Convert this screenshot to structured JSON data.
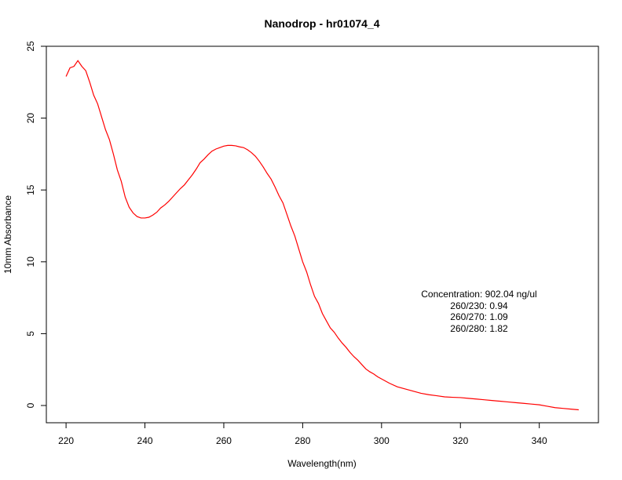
{
  "chart_data": {
    "type": "line",
    "title": "Nanodrop - hr01074_4",
    "xlabel": "Wavelength(nm)",
    "ylabel": "10mm Absorbance",
    "xlim": [
      215,
      355
    ],
    "ylim": [
      -1.2,
      25
    ],
    "xticks": [
      220,
      240,
      260,
      280,
      300,
      320,
      340
    ],
    "yticks": [
      0,
      5,
      10,
      15,
      20,
      25
    ],
    "grid": false,
    "line_color": "#ff0000",
    "series": [
      {
        "x": [
          220,
          221,
          222,
          223,
          224,
          225,
          226,
          227,
          228,
          229,
          230,
          231,
          232,
          233,
          234,
          235,
          236,
          237,
          238,
          239,
          240,
          241,
          242,
          243,
          244,
          245,
          246,
          247,
          248,
          249,
          250,
          251,
          252,
          253,
          254,
          255,
          256,
          257,
          258,
          259,
          260,
          261,
          262,
          263,
          264,
          265,
          266,
          267,
          268,
          269,
          270,
          271,
          272,
          273,
          274,
          275,
          276,
          277,
          278,
          279,
          280,
          281,
          282,
          283,
          284,
          285,
          286,
          287,
          288,
          289,
          290,
          291,
          292,
          293,
          294,
          295,
          296,
          297,
          298,
          299,
          300,
          302,
          304,
          306,
          308,
          310,
          312,
          314,
          316,
          318,
          320,
          322,
          324,
          326,
          328,
          330,
          332,
          334,
          336,
          338,
          340,
          342,
          344,
          346,
          348,
          350
        ],
        "y": [
          22.9,
          23.5,
          23.6,
          24.0,
          23.6,
          23.3,
          22.5,
          21.6,
          21.0,
          20.1,
          19.2,
          18.5,
          17.5,
          16.4,
          15.6,
          14.5,
          13.8,
          13.4,
          13.15,
          13.05,
          13.05,
          13.1,
          13.25,
          13.45,
          13.75,
          13.95,
          14.2,
          14.5,
          14.8,
          15.1,
          15.35,
          15.7,
          16.05,
          16.45,
          16.9,
          17.15,
          17.45,
          17.7,
          17.85,
          17.95,
          18.05,
          18.1,
          18.1,
          18.07,
          18.0,
          17.95,
          17.8,
          17.6,
          17.35,
          17.0,
          16.6,
          16.15,
          15.75,
          15.2,
          14.6,
          14.1,
          13.3,
          12.5,
          11.8,
          10.9,
          10.0,
          9.3,
          8.4,
          7.6,
          7.1,
          6.4,
          5.9,
          5.4,
          5.1,
          4.7,
          4.35,
          4.05,
          3.7,
          3.4,
          3.15,
          2.85,
          2.55,
          2.35,
          2.2,
          2.0,
          1.85,
          1.55,
          1.3,
          1.15,
          1.0,
          0.85,
          0.75,
          0.68,
          0.6,
          0.57,
          0.55,
          0.5,
          0.45,
          0.4,
          0.35,
          0.3,
          0.25,
          0.2,
          0.15,
          0.1,
          0.05,
          -0.05,
          -0.15,
          -0.2,
          -0.25,
          -0.3
        ]
      }
    ],
    "annotations": [
      "Concentration: 902.04 ng/ul",
      "260/230: 0.94",
      "260/270: 1.09",
      "260/280: 1.82"
    ]
  }
}
